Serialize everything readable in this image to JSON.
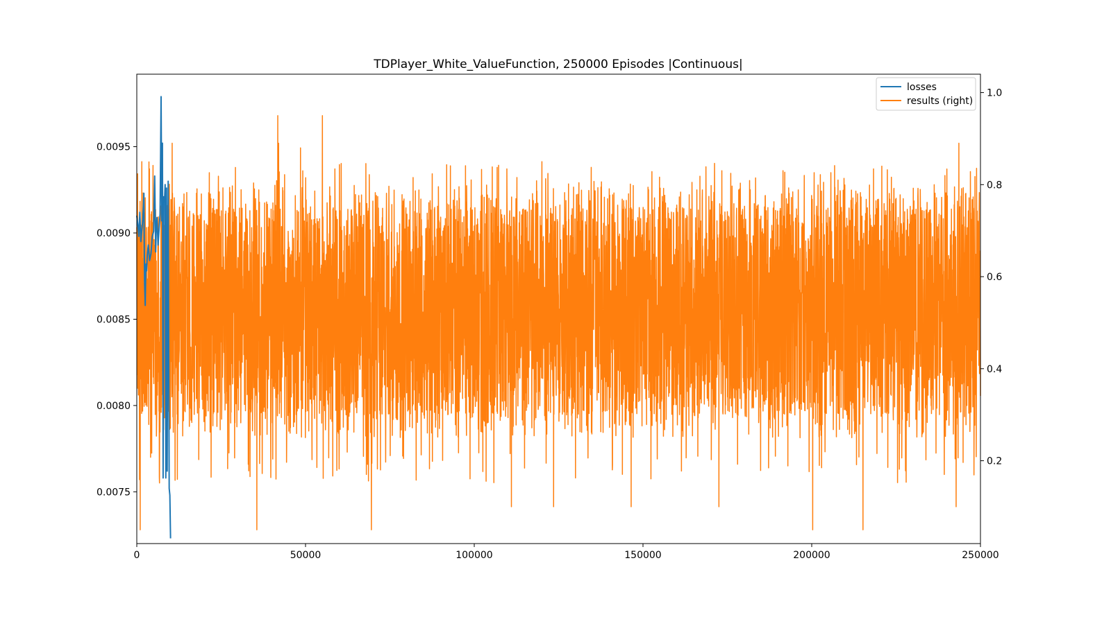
{
  "chart_data": {
    "type": "line",
    "title": "TDPlayer_White_ValueFunction, 250000 Episodes |Continuous|",
    "xlabel": "",
    "ylabel": "",
    "xlim": [
      0,
      250000
    ],
    "ylim_left": [
      0.0072,
      0.00992
    ],
    "ylim_right": [
      0.02,
      1.04
    ],
    "x_ticks": [
      0,
      50000,
      100000,
      150000,
      200000,
      250000
    ],
    "x_tick_labels": [
      "0",
      "50000",
      "100000",
      "150000",
      "200000",
      "250000"
    ],
    "y_left_ticks": [
      0.0075,
      0.008,
      0.0085,
      0.009,
      0.0095
    ],
    "y_left_tick_labels": [
      "0.0075",
      "0.0080",
      "0.0085",
      "0.0090",
      "0.0095"
    ],
    "y_right_ticks": [
      0.2,
      0.4,
      0.6,
      0.8,
      1.0
    ],
    "y_right_tick_labels": [
      "0.2",
      "0.4",
      "0.6",
      "0.8",
      "1.0"
    ],
    "grid": false,
    "legend_position": "top-right",
    "series": [
      {
        "name": "losses",
        "axis": "left",
        "color": "#1f77b4",
        "x": [
          0,
          300,
          600,
          900,
          1200,
          1500,
          1800,
          2100,
          2300,
          2500,
          2700,
          2900,
          3100,
          3400,
          3800,
          4200,
          4600,
          5000,
          5300,
          5600,
          5800,
          6000,
          6300,
          6600,
          6900,
          7200,
          7400,
          7600,
          7800,
          8000,
          8200,
          8400,
          8600,
          8800,
          9000,
          9300,
          9600,
          9800,
          10000
        ],
        "values": [
          0.0091,
          0.00905,
          0.00898,
          0.00912,
          0.00895,
          0.00902,
          0.00908,
          0.00923,
          0.00872,
          0.00858,
          0.00882,
          0.00878,
          0.00887,
          0.00893,
          0.00884,
          0.00888,
          0.00898,
          0.00901,
          0.00933,
          0.00889,
          0.00905,
          0.00909,
          0.00893,
          0.00902,
          0.00911,
          0.00979,
          0.00907,
          0.00952,
          0.00758,
          0.00921,
          0.00918,
          0.00928,
          0.00758,
          0.00926,
          0.00762,
          0.0093,
          0.00752,
          0.00748,
          0.00723
        ]
      },
      {
        "name": "results (right)",
        "axis": "right",
        "color": "#ff7f0e",
        "x_range": [
          0,
          250000
        ],
        "band_typical": [
          0.3,
          0.75
        ],
        "band_frequent": [
          0.25,
          0.8
        ],
        "peaks": [
          {
            "x": 1500,
            "value": 0.85
          },
          {
            "x": 10500,
            "value": 0.89
          },
          {
            "x": 41800,
            "value": 0.95
          },
          {
            "x": 55000,
            "value": 0.95
          },
          {
            "x": 48500,
            "value": 0.88
          },
          {
            "x": 42000,
            "value": 0.89
          },
          {
            "x": 243600,
            "value": 0.89
          },
          {
            "x": 1000,
            "value": 0.05
          },
          {
            "x": 35600,
            "value": 0.05
          },
          {
            "x": 69500,
            "value": 0.05
          },
          {
            "x": 200300,
            "value": 0.05
          },
          {
            "x": 215200,
            "value": 0.05
          },
          {
            "x": 111000,
            "value": 0.1
          },
          {
            "x": 123500,
            "value": 0.1
          },
          {
            "x": 146500,
            "value": 0.1
          },
          {
            "x": 172500,
            "value": 0.1
          },
          {
            "x": 242800,
            "value": 0.1
          }
        ]
      }
    ]
  }
}
